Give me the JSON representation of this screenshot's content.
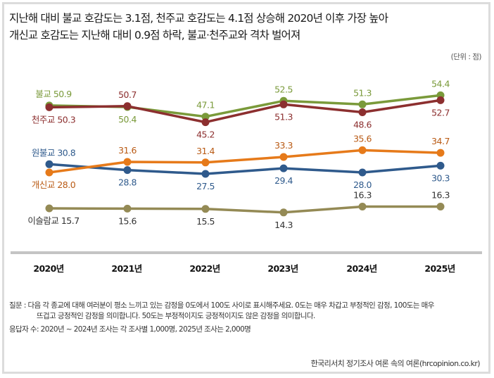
{
  "title_lines": [
    "지난해 대비 불교 호감도는 3.1점, 천주교 호감도는 4.1점 상승해 2020년 이후 가장 높아",
    "개신교 호감도는 지난해 대비 0.9점 하락, 불교·천주교와 격차 벌어져"
  ],
  "unit": "(단위 : 점)",
  "notes": {
    "question_line1": "질문 : 다음 각 종교에 대해 여러분이 평소 느끼고 있는 감정을 0도에서 100도 사이로 표시해주세요. 0도는 매우 차갑고 부정적인 감정, 100도는 매우",
    "question_line2": "뜨겁고 긍정적인 감정을 의미합니다. 50도는 부정적이지도 긍정적이지도 않은 감정을 의미합니다.",
    "respondents": "응답자 수: 2020년 ~ 2024년 조사는 각 조사별 1,000명, 2025년 조사는 2,000명"
  },
  "source": "한국리서치 정기조사 여론 속의 여론(hrcopinion.co.kr)",
  "chart_data": {
    "type": "line",
    "title": "종교별 호감도",
    "xlabel": "",
    "ylabel": "",
    "unit": "점",
    "categories": [
      "2020년",
      "2021년",
      "2022년",
      "2023년",
      "2024년",
      "2025년"
    ],
    "ylim": [
      0,
      100
    ],
    "grid": false,
    "legend": "inline labels at first point",
    "series": [
      {
        "name": "불교",
        "color": "#7a9a3a",
        "values": [
          50.9,
          50.4,
          47.1,
          52.5,
          51.3,
          54.4
        ],
        "label_pos": [
          "above",
          "below",
          "above",
          "above",
          "above",
          "above"
        ]
      },
      {
        "name": "천주교",
        "color": "#8c2f2f",
        "values": [
          50.3,
          50.7,
          45.2,
          51.3,
          48.6,
          52.7
        ],
        "label_pos": [
          "below",
          "above",
          "below",
          "below",
          "below",
          "below"
        ]
      },
      {
        "name": "원불교",
        "color": "#2f5a8c",
        "values": [
          30.8,
          28.8,
          27.5,
          29.4,
          28.0,
          30.3
        ],
        "label_pos": [
          "above",
          "below",
          "below",
          "below",
          "below",
          "below"
        ]
      },
      {
        "name": "개신교",
        "color": "#e67a1a",
        "label_color": "#b95a14",
        "values": [
          28.0,
          31.6,
          31.4,
          33.3,
          35.6,
          34.7
        ],
        "label_pos": [
          "below",
          "above",
          "above",
          "above",
          "above",
          "above"
        ]
      },
      {
        "name": "이슬람교",
        "color": "#948a55",
        "label_color": "#333333",
        "values": [
          15.7,
          15.6,
          15.5,
          14.3,
          16.3,
          16.3
        ],
        "label_pos": [
          "below",
          "below",
          "below",
          "below",
          "above",
          "above"
        ]
      }
    ]
  }
}
